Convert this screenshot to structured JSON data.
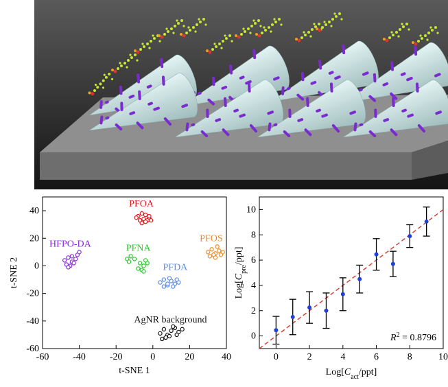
{
  "chart_data": [
    {
      "type": "scatter",
      "xlabel": "t-SNE 1",
      "ylabel": "t-SNE 2",
      "xlim": [
        -60,
        40
      ],
      "xticks": [
        -60,
        -40,
        -20,
        0,
        20,
        40
      ],
      "ylim": [
        -60,
        50
      ],
      "yticks": [
        -60,
        -40,
        -20,
        0,
        20,
        40
      ],
      "series": [
        {
          "name": "PFOA",
          "color": "#e8141c",
          "x": [
            -8,
            -6,
            -4,
            -2,
            -7,
            -5,
            -3,
            -6,
            -4,
            -2,
            -1,
            -9
          ],
          "y": [
            36,
            38,
            37,
            35,
            33,
            34,
            33,
            31,
            32,
            36,
            33,
            35
          ]
        },
        {
          "name": "HFPO-DA",
          "color": "#8a2be2",
          "x": [
            -48,
            -46,
            -44,
            -42,
            -47,
            -45,
            -43,
            -41,
            -40,
            -46,
            -44
          ],
          "y": [
            4,
            6,
            3,
            5,
            1,
            0,
            2,
            8,
            10,
            -1,
            7
          ]
        },
        {
          "name": "PFNA",
          "color": "#22cc22",
          "x": [
            -14,
            -12,
            -10,
            -13,
            -7,
            -5,
            -3,
            -6,
            -4,
            -8,
            -5
          ],
          "y": [
            5,
            7,
            5,
            3,
            2,
            0,
            2,
            -3,
            4,
            -2,
            -4
          ]
        },
        {
          "name": "PFOS",
          "color": "#f08a24",
          "x": [
            30,
            32,
            34,
            36,
            38,
            31,
            33,
            35,
            37,
            34
          ],
          "y": [
            10,
            12,
            9,
            11,
            10,
            7,
            8,
            14,
            8,
            6
          ]
        },
        {
          "name": "PFDA",
          "color": "#5b8def",
          "x": [
            4,
            6,
            8,
            10,
            12,
            14,
            6,
            9,
            11,
            13,
            8
          ],
          "y": [
            -12,
            -10,
            -14,
            -11,
            -13,
            -12,
            -15,
            -9,
            -15,
            -10,
            -13
          ]
        },
        {
          "name": "AgNR background",
          "color": "#111111",
          "x": [
            4,
            6,
            8,
            10,
            12,
            14,
            7,
            9,
            11,
            13,
            16,
            5
          ],
          "y": [
            -49,
            -46,
            -50,
            -47,
            -45,
            -48,
            -52,
            -51,
            -44,
            -50,
            -46,
            -53
          ]
        }
      ]
    },
    {
      "type": "errorbar",
      "xlabel": [
        {
          "text": "Log["
        },
        {
          "text": "C",
          "italic": true
        },
        {
          "text": "act",
          "sub": true
        },
        {
          "text": "/ppt]"
        }
      ],
      "ylabel": [
        {
          "text": "Log["
        },
        {
          "text": "C",
          "italic": true
        },
        {
          "text": "pre",
          "sub": true
        },
        {
          "text": "/ppt]"
        }
      ],
      "xlim": [
        -1,
        10
      ],
      "xticks": [
        0,
        2,
        4,
        6,
        8,
        10
      ],
      "ylim": [
        -1,
        11
      ],
      "yticks": [
        0,
        2,
        4,
        6,
        8,
        10
      ],
      "x": [
        0,
        1,
        2,
        3,
        4,
        5,
        6,
        7,
        8,
        9
      ],
      "values": [
        0.45,
        1.5,
        2.25,
        2.0,
        3.3,
        4.5,
        6.45,
        5.7,
        7.9,
        9.05
      ],
      "errors": [
        1.1,
        1.4,
        1.25,
        1.4,
        1.3,
        1.1,
        1.25,
        1.0,
        0.9,
        1.15
      ],
      "color": "#1f3fd6",
      "reference_line": {
        "x": [
          -1,
          10
        ],
        "y": [
          -1,
          10
        ],
        "color": "#d43a2a"
      },
      "annotation": [
        {
          "text": "R",
          "italic": true
        },
        {
          "text": "2",
          "sup": true
        },
        {
          "text": " = 0.8796"
        }
      ]
    }
  ]
}
